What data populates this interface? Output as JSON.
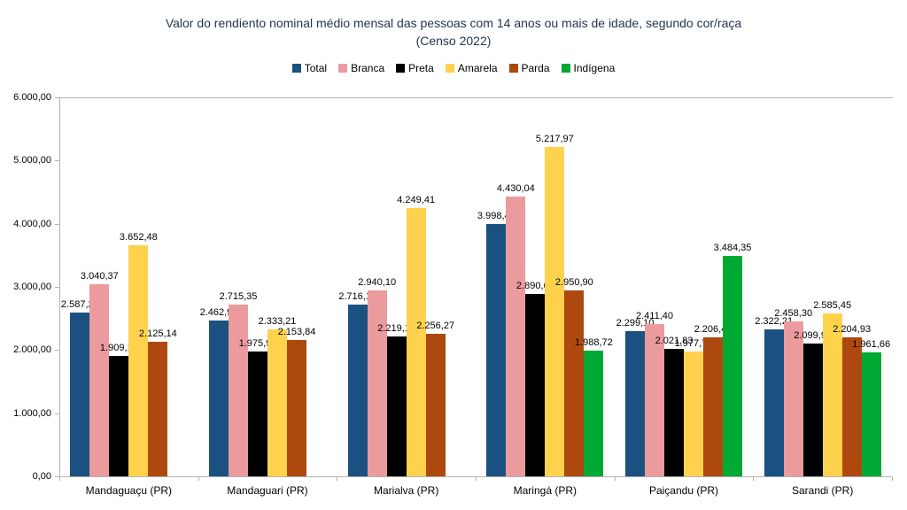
{
  "title": {
    "line1": "Valor do rendiento nominal médio mensal das pessoas com 14 anos ou mais de idade, segundo cor/raça",
    "line2": "(Censo 2022)"
  },
  "chart_data": {
    "type": "bar",
    "title": "Valor do rendiento nominal médio mensal das pessoas com 14 anos ou mais de idade, segundo cor/raça",
    "subtitle": "(Censo 2022)",
    "categories": [
      "Mandaguaçu (PR)",
      "Mandaguari (PR)",
      "Marialva (PR)",
      "Maringá (PR)",
      "Paiçandu (PR)",
      "Sarandi (PR)"
    ],
    "series": [
      {
        "name": "Total",
        "color": "#1a5180",
        "values": [
          2587.26,
          2462.96,
          2716.15,
          3998.48,
          2299.1,
          2322.21
        ],
        "labels": [
          "2.587,26",
          "2.462,96",
          "2.716,15",
          "3.998,48",
          "2.299,10",
          "2.322,21"
        ]
      },
      {
        "name": "Branca",
        "color": "#eb9a9e",
        "values": [
          3040.37,
          2715.35,
          2940.1,
          4430.04,
          2411.4,
          2458.3
        ],
        "labels": [
          "3.040,37",
          "2.715,35",
          "2.940,10",
          "4.430,04",
          "2.411,40",
          "2.458,30"
        ]
      },
      {
        "name": "Preta",
        "color": "#000000",
        "values": [
          1909.13,
          1975.99,
          2219.16,
          2890.69,
          2021.83,
          2099.99
        ],
        "labels": [
          "1.909,13",
          "1.975,99",
          "2.219,16",
          "2.890,69",
          "2.021,83",
          "2.099,99"
        ]
      },
      {
        "name": "Amarela",
        "color": "#ffd24d",
        "values": [
          3652.48,
          2333.21,
          4249.41,
          5217.97,
          1977.76,
          2585.45
        ],
        "labels": [
          "3.652,48",
          "2.333,21",
          "4.249,41",
          "5.217,97",
          "1.977,76",
          "2.585,45"
        ]
      },
      {
        "name": "Parda",
        "color": "#ad490f",
        "values": [
          2125.14,
          2153.84,
          2256.27,
          2950.9,
          2206.46,
          2204.93
        ],
        "labels": [
          "2.125,14",
          "2.153,84",
          "2.256,27",
          "2.950,90",
          "2.206,46",
          "2.204,93"
        ]
      },
      {
        "name": "Indígena",
        "color": "#00a933",
        "values": [
          null,
          null,
          null,
          1988.72,
          3484.35,
          1961.66
        ],
        "labels": [
          "",
          "",
          "",
          "1.988,72",
          "3.484,35",
          "1.961,66"
        ]
      }
    ],
    "ylim": [
      0,
      6000
    ],
    "y_ticks": [
      {
        "value": 0,
        "label": "0,00"
      },
      {
        "value": 1000,
        "label": "1.000,00"
      },
      {
        "value": 2000,
        "label": "2.000,00"
      },
      {
        "value": 3000,
        "label": "3.000,00"
      },
      {
        "value": 4000,
        "label": "4.000,00"
      },
      {
        "value": 5000,
        "label": "5.000,00"
      },
      {
        "value": 6000,
        "label": "6.000,00"
      }
    ],
    "xlabel": "",
    "ylabel": "",
    "grid": false,
    "legend_position": "top",
    "axis_color": "#b3b3b3"
  }
}
